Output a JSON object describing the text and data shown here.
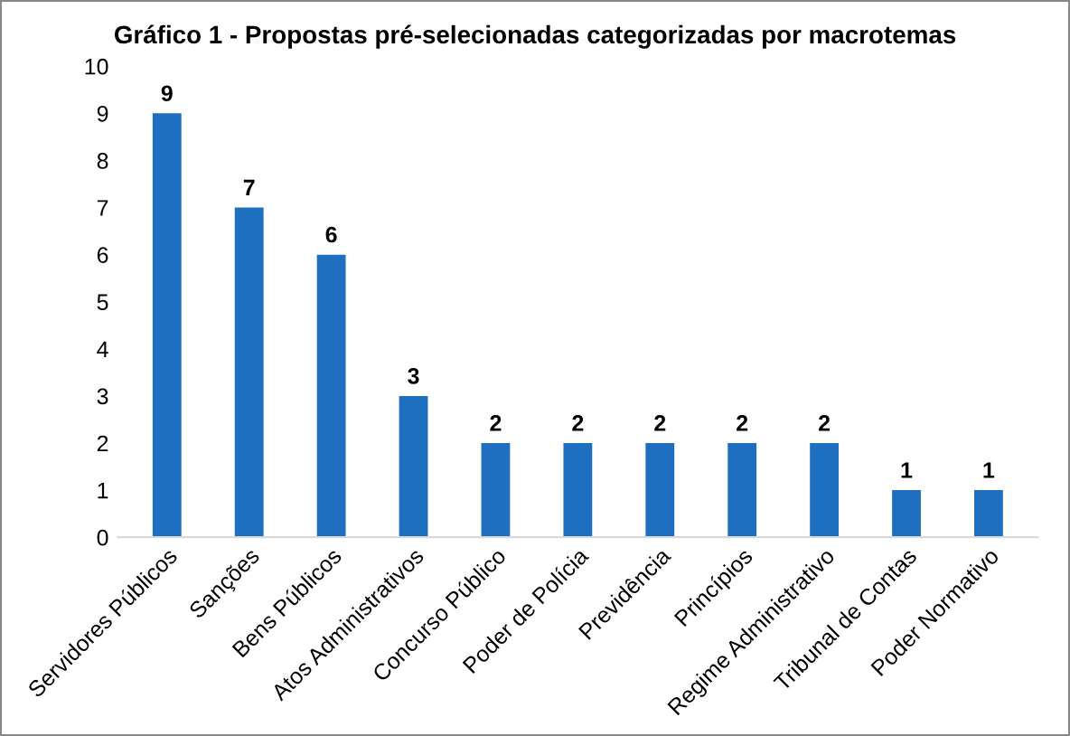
{
  "chart_data": {
    "type": "bar",
    "title": "Gráfico 1 - Propostas pré-selecionadas categorizadas por macrotemas",
    "categories": [
      "Servidores Públicos",
      "Sanções",
      "Bens Públicos",
      "Atos Administrativos",
      "Concurso Público",
      "Poder de Polícia",
      "Previdência",
      "Princípios",
      "Regime Administrativo",
      "Tribunal de Contas",
      "Poder Normativo"
    ],
    "values": [
      9,
      7,
      6,
      3,
      2,
      2,
      2,
      2,
      2,
      1,
      1
    ],
    "color": "#1f6fc0",
    "ylim": [
      0,
      10
    ],
    "yticks": [
      0,
      1,
      2,
      3,
      4,
      5,
      6,
      7,
      8,
      9,
      10
    ],
    "grid": false,
    "data_labels": true
  }
}
